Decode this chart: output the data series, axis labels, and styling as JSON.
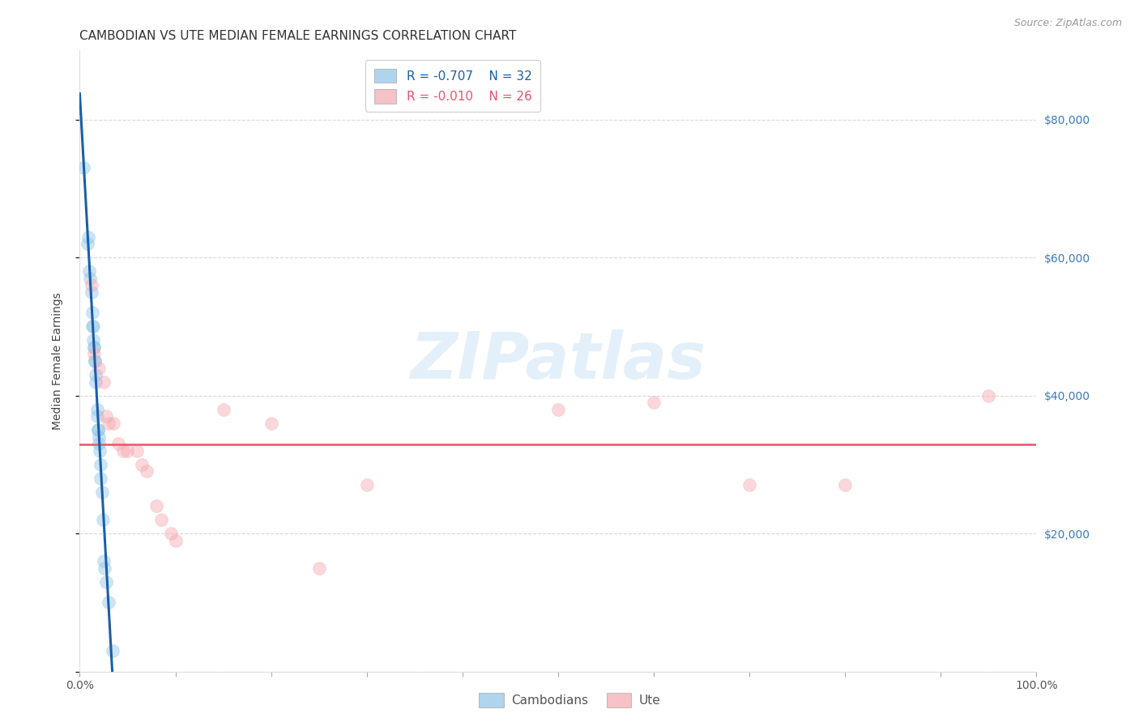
{
  "title": "CAMBODIAN VS UTE MEDIAN FEMALE EARNINGS CORRELATION CHART",
  "source": "Source: ZipAtlas.com",
  "ylabel": "Median Female Earnings",
  "ylim": [
    0,
    90000
  ],
  "xlim": [
    0.0,
    1.0
  ],
  "yticks": [
    0,
    20000,
    40000,
    60000,
    80000
  ],
  "ytick_labels_right": [
    "",
    "$20,000",
    "$40,000",
    "$60,000",
    "$80,000"
  ],
  "xticks": [
    0.0,
    0.1,
    0.2,
    0.3,
    0.4,
    0.5,
    0.6,
    0.7,
    0.8,
    0.9,
    1.0
  ],
  "xtick_labels": [
    "0.0%",
    "",
    "",
    "",
    "",
    "",
    "",
    "",
    "",
    "",
    "100.0%"
  ],
  "legend_R_cambodian": "-0.707",
  "legend_N_cambodian": "32",
  "legend_R_ute": "-0.010",
  "legend_N_ute": "26",
  "cambodian_color": "#8ec4e8",
  "ute_color": "#f4a8b0",
  "regression_cambodian_color": "#1a5fa8",
  "regression_ute_color": "#e8546a",
  "watermark_text": "ZIPatlas",
  "watermark_color": "#cde4f5",
  "cambodian_x": [
    0.004,
    0.008,
    0.009,
    0.01,
    0.011,
    0.012,
    0.013,
    0.013,
    0.014,
    0.014,
    0.015,
    0.015,
    0.016,
    0.016,
    0.017,
    0.017,
    0.018,
    0.018,
    0.019,
    0.019,
    0.02,
    0.02,
    0.021,
    0.022,
    0.022,
    0.023,
    0.024,
    0.025,
    0.026,
    0.028,
    0.03,
    0.034
  ],
  "cambodian_y": [
    73000,
    62000,
    63000,
    58000,
    57000,
    55000,
    52000,
    50000,
    50000,
    48000,
    47000,
    47000,
    45000,
    45000,
    43000,
    42000,
    38000,
    37000,
    35000,
    35000,
    34000,
    33000,
    32000,
    30000,
    28000,
    26000,
    22000,
    16000,
    15000,
    13000,
    10000,
    3000
  ],
  "ute_x": [
    0.012,
    0.015,
    0.02,
    0.025,
    0.028,
    0.03,
    0.035,
    0.04,
    0.045,
    0.05,
    0.06,
    0.065,
    0.07,
    0.08,
    0.085,
    0.095,
    0.1,
    0.15,
    0.2,
    0.25,
    0.3,
    0.5,
    0.6,
    0.7,
    0.8,
    0.95
  ],
  "ute_y": [
    56000,
    46000,
    44000,
    42000,
    37000,
    36000,
    36000,
    33000,
    32000,
    32000,
    32000,
    30000,
    29000,
    24000,
    22000,
    20000,
    19000,
    38000,
    36000,
    15000,
    27000,
    38000,
    39000,
    27000,
    27000,
    40000
  ],
  "title_fontsize": 11,
  "axis_label_fontsize": 10,
  "tick_fontsize": 10,
  "legend_fontsize": 11,
  "source_fontsize": 9,
  "background_color": "#ffffff",
  "grid_color": "#d0d0d0",
  "grid_linestyle": "--",
  "grid_alpha": 0.8,
  "scatter_size": 130,
  "scatter_alpha": 0.45,
  "right_tick_color": "#3a7bbf"
}
